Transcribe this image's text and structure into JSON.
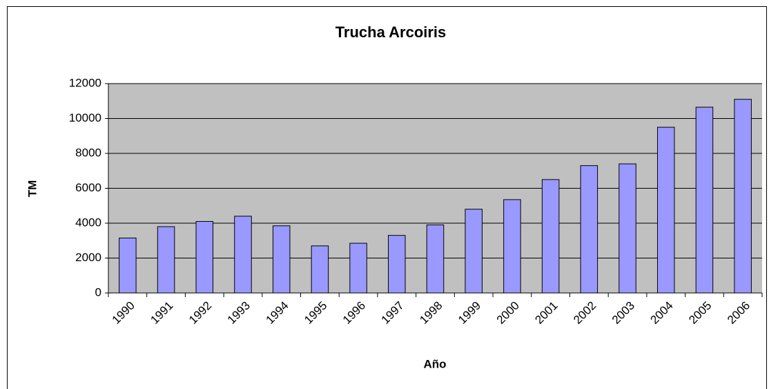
{
  "chart_data": {
    "type": "bar",
    "title": "Trucha Arcoiris",
    "y_label": "TM",
    "x_label": "Año",
    "categories": [
      "1990",
      "1991",
      "1992",
      "1993",
      "1994",
      "1995",
      "1996",
      "1997",
      "1998",
      "1999",
      "2000",
      "2001",
      "2002",
      "2003",
      "2004",
      "2005",
      "2006"
    ],
    "values": [
      3150,
      3800,
      4100,
      4400,
      3850,
      2700,
      2850,
      3300,
      3900,
      4800,
      5350,
      6500,
      7300,
      7400,
      9500,
      10650,
      11100
    ],
    "color": "#9999ff",
    "plot_background": "#c0c0c0",
    "ylim": [
      0,
      12000
    ],
    "yticks": [
      0,
      2000,
      4000,
      6000,
      8000,
      10000,
      12000
    ],
    "grid": true
  }
}
